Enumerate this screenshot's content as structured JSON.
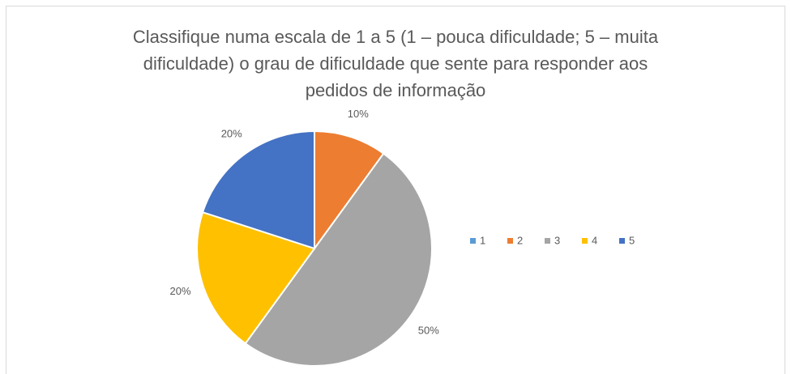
{
  "chart_data": {
    "type": "pie",
    "title": [
      "Classifique numa escala de 1 a 5 (1 – pouca dificuldade; 5 – muita",
      "dificuldade) o grau de dificuldade que sente para responder aos",
      "pedidos de informação"
    ],
    "categories": [
      "1",
      "2",
      "3",
      "4",
      "5"
    ],
    "values": [
      0,
      10,
      50,
      20,
      20
    ],
    "value_labels": [
      null,
      "10%",
      "50%",
      "20%",
      "20%"
    ],
    "colors": [
      "#5b9bd5",
      "#ed7d31",
      "#a5a5a5",
      "#ffc000",
      "#4472c4"
    ],
    "legend": "right"
  }
}
